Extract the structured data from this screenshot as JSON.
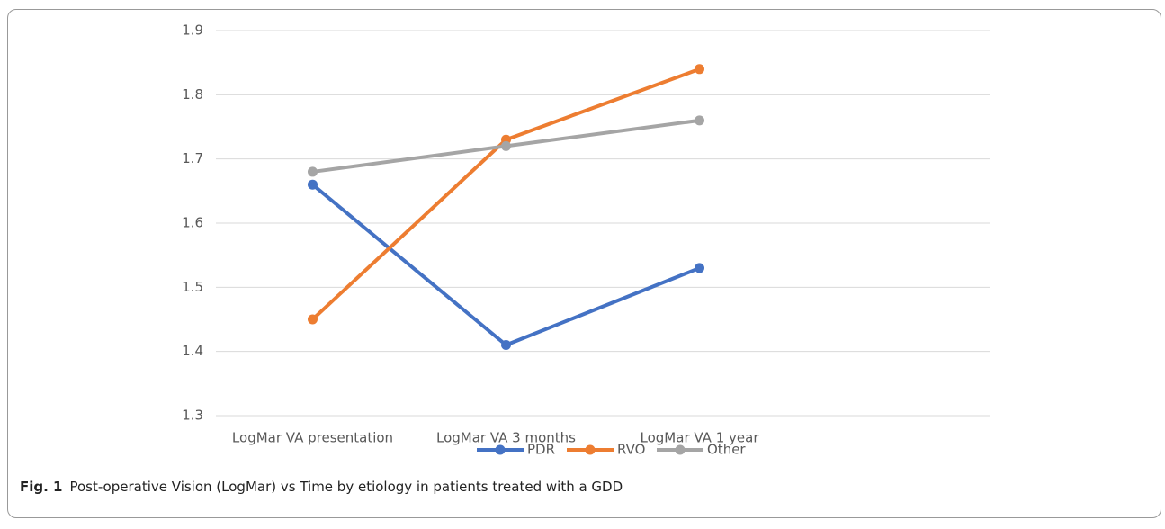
{
  "chart_data": {
    "type": "line",
    "categories": [
      "LogMar VA presentation",
      "LogMar VA 3 months",
      "LogMar VA 1 year",
      null
    ],
    "series": [
      {
        "name": "PDR",
        "color": "#4472c4",
        "values": [
          1.66,
          1.41,
          1.53,
          null
        ]
      },
      {
        "name": "RVO",
        "color": "#ed7d31",
        "values": [
          1.45,
          1.73,
          1.84,
          null
        ]
      },
      {
        "name": "Other",
        "color": "#a5a5a5",
        "values": [
          1.68,
          1.72,
          1.76,
          null
        ]
      }
    ],
    "ylim": [
      1.3,
      1.9
    ],
    "yticks": [
      1.3,
      1.4,
      1.5,
      1.6,
      1.7,
      1.8,
      1.9
    ],
    "grid": true,
    "legend": "bottom"
  },
  "caption": {
    "label": "Fig. 1",
    "text": "Post-operative Vision (LogMar) vs Time by etiology in patients treated with a GDD"
  }
}
